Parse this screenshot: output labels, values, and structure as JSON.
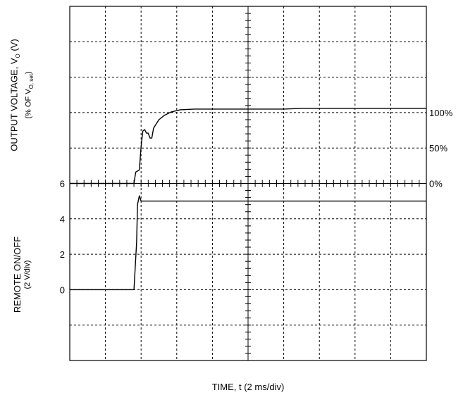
{
  "chart_data": {
    "type": "line",
    "xlabel": "TIME, t (2 ms/div)",
    "x_divisions": 10,
    "y_divisions": 10,
    "grid": true,
    "upper_axis": {
      "label_line1_prefix": "OUTPUT VOLTAGE, V",
      "label_line1_sub": "O",
      "label_line1_suffix": " (V)",
      "label_line2_prefix": "(% OF V",
      "label_line2_sub": "O, set",
      "label_line2_suffix": ")",
      "tick_labels": [
        "100%",
        "50%",
        "0%"
      ],
      "tick_values": [
        100,
        50,
        0
      ]
    },
    "lower_axis": {
      "label_line1": "REMOTE ON/OFF",
      "label_line2": "(2 V/div)",
      "tick_labels": [
        "6",
        "4",
        "2",
        "0"
      ],
      "tick_values": [
        6,
        4,
        2,
        0
      ]
    },
    "series": [
      {
        "role": "output_voltage_percent",
        "x_ms": [
          0,
          3.6,
          3.7,
          3.9,
          4.0,
          4.1,
          4.2,
          4.3,
          4.4,
          4.5,
          4.6,
          4.7,
          4.8,
          5.0,
          5.3,
          5.7,
          6.2,
          7.0,
          9.0,
          12.0,
          13.0,
          20.0
        ],
        "values": [
          0,
          0,
          16,
          19,
          52,
          74,
          76,
          71,
          71,
          64,
          64,
          78,
          82,
          90,
          96,
          101,
          104,
          105,
          105,
          105,
          106,
          106
        ]
      },
      {
        "role": "remote_on_off_volts",
        "x_ms": [
          0,
          3.6,
          3.75,
          3.8,
          3.9,
          4.0,
          4.2,
          20.0
        ],
        "values": [
          0,
          0,
          2.7,
          4.8,
          5.3,
          5.0,
          5.0,
          5.0
        ]
      }
    ]
  }
}
